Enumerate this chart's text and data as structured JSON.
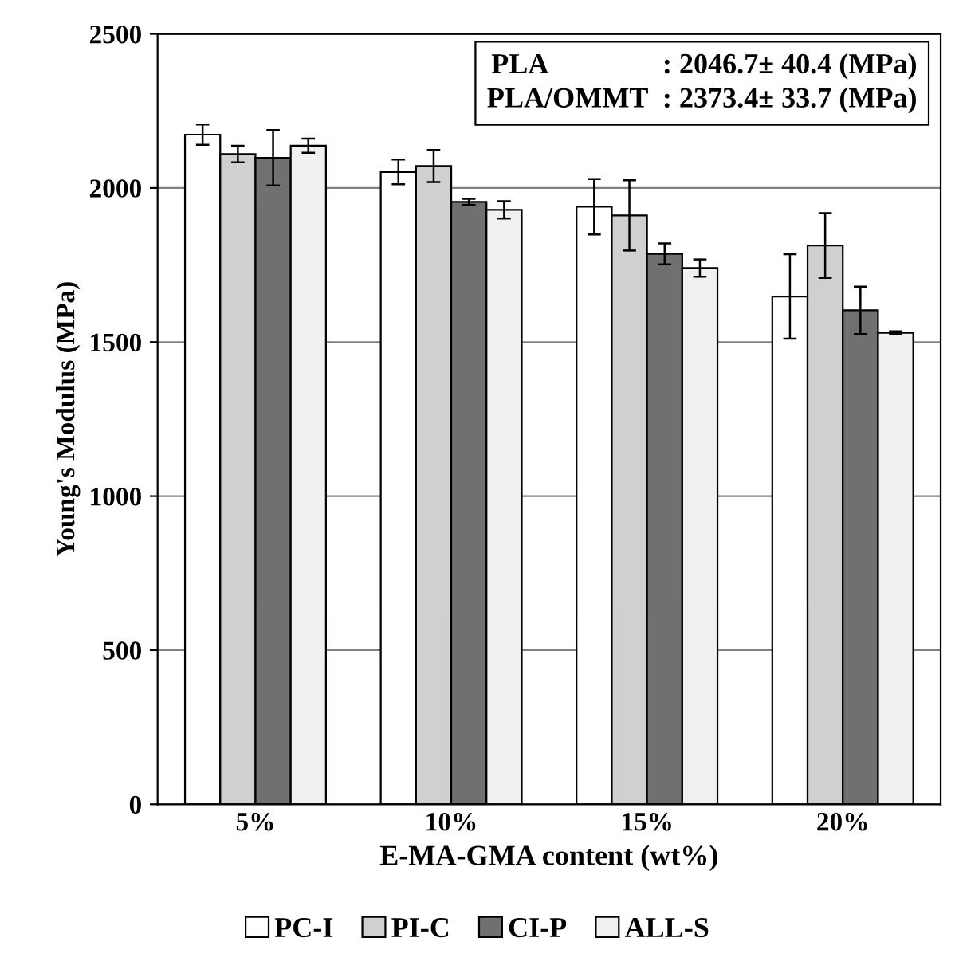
{
  "chart_data": {
    "type": "bar",
    "xlabel": "E-MA-GMA content (wt%)",
    "ylabel": "Young's Modulus (MPa)",
    "categories": [
      "5%",
      "10%",
      "15%",
      "20%"
    ],
    "series": [
      {
        "name": "PC-I",
        "color": "#ffffff",
        "values": [
          2173,
          2052,
          1939,
          1648
        ],
        "errors": [
          33,
          40,
          90,
          137
        ]
      },
      {
        "name": "PI-C",
        "color": "#d0d0d0",
        "values": [
          2110,
          2071,
          1911,
          1813
        ],
        "errors": [
          27,
          52,
          114,
          105
        ]
      },
      {
        "name": "CI-P",
        "color": "#707070",
        "values": [
          2098,
          1955,
          1786,
          1603
        ],
        "errors": [
          90,
          10,
          34,
          77
        ]
      },
      {
        "name": "ALL-S",
        "color": "#f0f0f0",
        "values": [
          2137,
          1929,
          1740,
          1530
        ],
        "errors": [
          23,
          28,
          28,
          5
        ]
      }
    ],
    "ylim": [
      0,
      2500
    ],
    "yticks": [
      0,
      500,
      1000,
      1500,
      2000,
      2500
    ],
    "grid": "y",
    "legend": "bottom",
    "annotations": [
      "PLA                : 2046.7± 40.4 (MPa)\nPLA/OMMT  : 2373.4± 33.7 (MPa)"
    ]
  }
}
